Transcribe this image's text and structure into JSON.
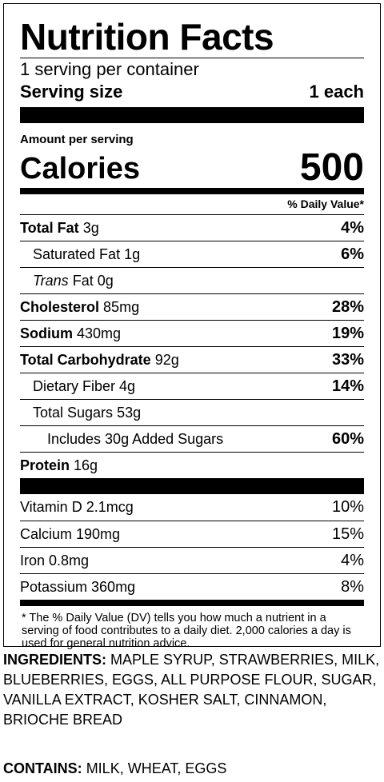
{
  "title": "Nutrition Facts",
  "servings_per_container": "1 serving per container",
  "serving_size": {
    "label": "Serving size",
    "value": "1 each"
  },
  "amount_per_serving": "Amount per serving",
  "calories": {
    "label": "Calories",
    "value": "500"
  },
  "daily_value_header": "% Daily Value*",
  "nutrients": [
    {
      "name": "Total Fat",
      "amount": "3g",
      "dv": "4%"
    },
    {
      "name": "Saturated Fat",
      "amount": "1g",
      "dv": "6%"
    },
    {
      "name_italic": "Trans",
      "name": "Fat",
      "amount": "0g",
      "dv": ""
    },
    {
      "name": "Cholesterol",
      "amount": "85mg",
      "dv": "28%"
    },
    {
      "name": "Sodium",
      "amount": "430mg",
      "dv": "19%"
    },
    {
      "name": "Total Carbohydrate",
      "amount": "92g",
      "dv": "33%"
    },
    {
      "name": "Dietary Fiber",
      "amount": "4g",
      "dv": "14%"
    },
    {
      "name": "Total Sugars",
      "amount": "53g",
      "dv": ""
    },
    {
      "text": "Includes 30g Added Sugars",
      "dv": "60%"
    },
    {
      "name": "Protein",
      "amount": "16g",
      "dv": ""
    }
  ],
  "vitamins": [
    {
      "text": "Vitamin D 2.1mcg",
      "dv": "10%"
    },
    {
      "text": "Calcium 190mg",
      "dv": "15%"
    },
    {
      "text": "Iron 0.8mg",
      "dv": "4%"
    },
    {
      "text": "Potassium 360mg",
      "dv": "8%"
    }
  ],
  "footnote": "* The % Daily Value (DV) tells you how much a nutrient in a serving of food contributes to a daily diet. 2,000 calories a day is used for general nutrition advice.",
  "ingredients": {
    "label": "INGREDIENTS:",
    "text": "MAPLE SYRUP, STRAWBERRIES, MILK, BLUEBERRIES, EGGS, ALL PURPOSE FLOUR, SUGAR, VANILLA EXTRACT, KOSHER SALT, CINNAMON, BRIOCHE BREAD"
  },
  "contains": {
    "label": "CONTAINS:",
    "text": "MILK, WHEAT, EGGS"
  }
}
